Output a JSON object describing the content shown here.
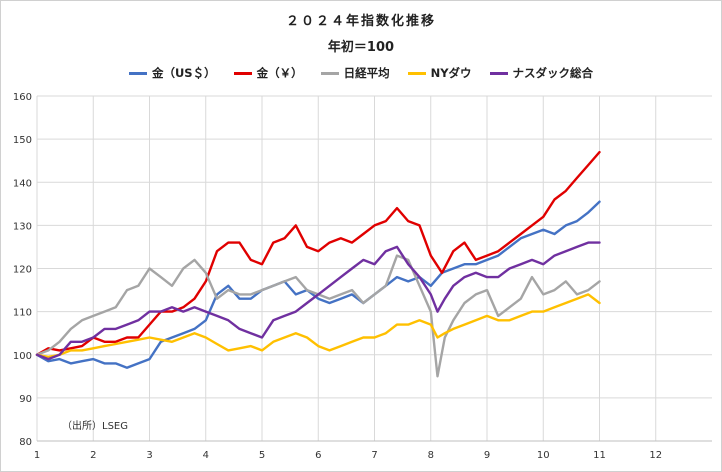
{
  "title": "２０２４年指数化推移",
  "subtitle": "年初＝100",
  "source_note": "（出所）LSEG",
  "chart_data": {
    "type": "line",
    "title": "２０２４年指数化推移",
    "subtitle": "年初＝100",
    "xlim": [
      1,
      13
    ],
    "ylim": [
      80,
      160
    ],
    "x_ticks": [
      "1",
      "2",
      "3",
      "4",
      "5",
      "6",
      "7",
      "8",
      "9",
      "10",
      "11",
      "12"
    ],
    "y_ticks": [
      "80",
      "90",
      "100",
      "110",
      "120",
      "130",
      "140",
      "150",
      "160"
    ],
    "grid": true,
    "legend_position": "top-center",
    "series": [
      {
        "name": "金（US＄）",
        "color": "#4472c4",
        "points": [
          [
            1,
            100
          ],
          [
            1.2,
            98.5
          ],
          [
            1.4,
            99
          ],
          [
            1.6,
            98
          ],
          [
            1.8,
            98.5
          ],
          [
            2,
            99
          ],
          [
            2.2,
            98
          ],
          [
            2.4,
            98
          ],
          [
            2.6,
            97
          ],
          [
            2.8,
            98
          ],
          [
            3,
            99
          ],
          [
            3.2,
            103
          ],
          [
            3.4,
            104
          ],
          [
            3.6,
            105
          ],
          [
            3.8,
            106
          ],
          [
            4,
            108
          ],
          [
            4.2,
            114
          ],
          [
            4.4,
            116
          ],
          [
            4.6,
            113
          ],
          [
            4.8,
            113
          ],
          [
            5,
            115
          ],
          [
            5.2,
            116
          ],
          [
            5.4,
            117
          ],
          [
            5.6,
            114
          ],
          [
            5.8,
            115
          ],
          [
            6,
            113
          ],
          [
            6.2,
            112
          ],
          [
            6.4,
            113
          ],
          [
            6.6,
            114
          ],
          [
            6.8,
            112
          ],
          [
            7,
            114
          ],
          [
            7.2,
            116
          ],
          [
            7.4,
            118
          ],
          [
            7.6,
            117
          ],
          [
            7.8,
            118
          ],
          [
            8,
            116
          ],
          [
            8.2,
            119
          ],
          [
            8.4,
            120
          ],
          [
            8.6,
            121
          ],
          [
            8.8,
            121
          ],
          [
            9,
            122
          ],
          [
            9.2,
            123
          ],
          [
            9.4,
            125
          ],
          [
            9.6,
            127
          ],
          [
            9.8,
            128
          ],
          [
            10,
            129
          ],
          [
            10.2,
            128
          ],
          [
            10.4,
            130
          ],
          [
            10.6,
            131
          ],
          [
            10.8,
            133
          ],
          [
            11,
            135.5
          ]
        ]
      },
      {
        "name": "金（￥）",
        "color": "#e00000",
        "points": [
          [
            1,
            100
          ],
          [
            1.2,
            101.5
          ],
          [
            1.4,
            101
          ],
          [
            1.6,
            101.5
          ],
          [
            1.8,
            102
          ],
          [
            2,
            104
          ],
          [
            2.2,
            103
          ],
          [
            2.4,
            103
          ],
          [
            2.6,
            104
          ],
          [
            2.8,
            104
          ],
          [
            3,
            107
          ],
          [
            3.2,
            110
          ],
          [
            3.4,
            110
          ],
          [
            3.6,
            111
          ],
          [
            3.8,
            113
          ],
          [
            4,
            117
          ],
          [
            4.2,
            124
          ],
          [
            4.4,
            126
          ],
          [
            4.6,
            126
          ],
          [
            4.8,
            122
          ],
          [
            5,
            121
          ],
          [
            5.2,
            126
          ],
          [
            5.4,
            127
          ],
          [
            5.6,
            130
          ],
          [
            5.8,
            125
          ],
          [
            6,
            124
          ],
          [
            6.2,
            126
          ],
          [
            6.4,
            127
          ],
          [
            6.6,
            126
          ],
          [
            6.8,
            128
          ],
          [
            7,
            130
          ],
          [
            7.2,
            131
          ],
          [
            7.4,
            134
          ],
          [
            7.6,
            131
          ],
          [
            7.8,
            130
          ],
          [
            8,
            123
          ],
          [
            8.2,
            119
          ],
          [
            8.4,
            124
          ],
          [
            8.6,
            126
          ],
          [
            8.8,
            122
          ],
          [
            9,
            123
          ],
          [
            9.2,
            124
          ],
          [
            9.4,
            126
          ],
          [
            9.6,
            128
          ],
          [
            9.8,
            130
          ],
          [
            10,
            132
          ],
          [
            10.2,
            136
          ],
          [
            10.4,
            138
          ],
          [
            10.6,
            141
          ],
          [
            10.8,
            144
          ],
          [
            11,
            147
          ]
        ]
      },
      {
        "name": "日経平均",
        "color": "#a5a5a5",
        "points": [
          [
            1,
            100
          ],
          [
            1.2,
            101
          ],
          [
            1.4,
            103
          ],
          [
            1.6,
            106
          ],
          [
            1.8,
            108
          ],
          [
            2,
            109
          ],
          [
            2.2,
            110
          ],
          [
            2.4,
            111
          ],
          [
            2.6,
            115
          ],
          [
            2.8,
            116
          ],
          [
            3,
            120
          ],
          [
            3.2,
            118
          ],
          [
            3.4,
            116
          ],
          [
            3.6,
            120
          ],
          [
            3.8,
            122
          ],
          [
            4,
            119
          ],
          [
            4.2,
            113
          ],
          [
            4.4,
            115
          ],
          [
            4.6,
            114
          ],
          [
            4.8,
            114
          ],
          [
            5,
            115
          ],
          [
            5.2,
            116
          ],
          [
            5.4,
            117
          ],
          [
            5.6,
            118
          ],
          [
            5.8,
            115
          ],
          [
            6,
            114
          ],
          [
            6.2,
            113
          ],
          [
            6.4,
            114
          ],
          [
            6.6,
            115
          ],
          [
            6.8,
            112
          ],
          [
            7,
            114
          ],
          [
            7.2,
            116
          ],
          [
            7.4,
            123
          ],
          [
            7.6,
            122
          ],
          [
            7.8,
            116
          ],
          [
            8,
            110
          ],
          [
            8.12,
            95
          ],
          [
            8.25,
            104
          ],
          [
            8.4,
            108
          ],
          [
            8.6,
            112
          ],
          [
            8.8,
            114
          ],
          [
            9,
            115
          ],
          [
            9.2,
            109
          ],
          [
            9.4,
            111
          ],
          [
            9.6,
            113
          ],
          [
            9.8,
            118
          ],
          [
            10,
            114
          ],
          [
            10.2,
            115
          ],
          [
            10.4,
            117
          ],
          [
            10.6,
            114
          ],
          [
            10.8,
            115
          ],
          [
            11,
            117
          ]
        ]
      },
      {
        "name": "NYダウ",
        "color": "#ffc000",
        "points": [
          [
            1,
            100
          ],
          [
            1.2,
            99.5
          ],
          [
            1.4,
            100
          ],
          [
            1.6,
            101
          ],
          [
            1.8,
            101
          ],
          [
            2,
            101.5
          ],
          [
            2.2,
            102
          ],
          [
            2.4,
            102.5
          ],
          [
            2.6,
            103
          ],
          [
            2.8,
            103.5
          ],
          [
            3,
            104
          ],
          [
            3.2,
            103.5
          ],
          [
            3.4,
            103
          ],
          [
            3.6,
            104
          ],
          [
            3.8,
            105
          ],
          [
            4,
            104
          ],
          [
            4.2,
            102.5
          ],
          [
            4.4,
            101
          ],
          [
            4.6,
            101.5
          ],
          [
            4.8,
            102
          ],
          [
            5,
            101
          ],
          [
            5.2,
            103
          ],
          [
            5.4,
            104
          ],
          [
            5.6,
            105
          ],
          [
            5.8,
            104
          ],
          [
            6,
            102
          ],
          [
            6.2,
            101
          ],
          [
            6.4,
            102
          ],
          [
            6.6,
            103
          ],
          [
            6.8,
            104
          ],
          [
            7,
            104
          ],
          [
            7.2,
            105
          ],
          [
            7.4,
            107
          ],
          [
            7.6,
            107
          ],
          [
            7.8,
            108
          ],
          [
            8,
            107
          ],
          [
            8.12,
            104
          ],
          [
            8.25,
            105
          ],
          [
            8.4,
            106
          ],
          [
            8.6,
            107
          ],
          [
            8.8,
            108
          ],
          [
            9,
            109
          ],
          [
            9.2,
            108
          ],
          [
            9.4,
            108
          ],
          [
            9.6,
            109
          ],
          [
            9.8,
            110
          ],
          [
            10,
            110
          ],
          [
            10.2,
            111
          ],
          [
            10.4,
            112
          ],
          [
            10.6,
            113
          ],
          [
            10.8,
            114
          ],
          [
            11,
            112
          ]
        ]
      },
      {
        "name": "ナスダック総合",
        "color": "#7030a0",
        "points": [
          [
            1,
            100
          ],
          [
            1.2,
            99
          ],
          [
            1.4,
            100
          ],
          [
            1.6,
            103
          ],
          [
            1.8,
            103
          ],
          [
            2,
            104
          ],
          [
            2.2,
            106
          ],
          [
            2.4,
            106
          ],
          [
            2.6,
            107
          ],
          [
            2.8,
            108
          ],
          [
            3,
            110
          ],
          [
            3.2,
            110
          ],
          [
            3.4,
            111
          ],
          [
            3.6,
            110
          ],
          [
            3.8,
            111
          ],
          [
            4,
            110
          ],
          [
            4.2,
            109
          ],
          [
            4.4,
            108
          ],
          [
            4.6,
            106
          ],
          [
            4.8,
            105
          ],
          [
            5,
            104
          ],
          [
            5.2,
            108
          ],
          [
            5.4,
            109
          ],
          [
            5.6,
            110
          ],
          [
            5.8,
            112
          ],
          [
            6,
            114
          ],
          [
            6.2,
            116
          ],
          [
            6.4,
            118
          ],
          [
            6.6,
            120
          ],
          [
            6.8,
            122
          ],
          [
            7,
            121
          ],
          [
            7.2,
            124
          ],
          [
            7.4,
            125
          ],
          [
            7.6,
            121
          ],
          [
            7.8,
            118
          ],
          [
            8,
            114
          ],
          [
            8.12,
            110
          ],
          [
            8.25,
            113
          ],
          [
            8.4,
            116
          ],
          [
            8.6,
            118
          ],
          [
            8.8,
            119
          ],
          [
            9,
            118
          ],
          [
            9.2,
            118
          ],
          [
            9.4,
            120
          ],
          [
            9.6,
            121
          ],
          [
            9.8,
            122
          ],
          [
            10,
            121
          ],
          [
            10.2,
            123
          ],
          [
            10.4,
            124
          ],
          [
            10.6,
            125
          ],
          [
            10.8,
            126
          ],
          [
            11,
            126
          ]
        ]
      }
    ]
  }
}
